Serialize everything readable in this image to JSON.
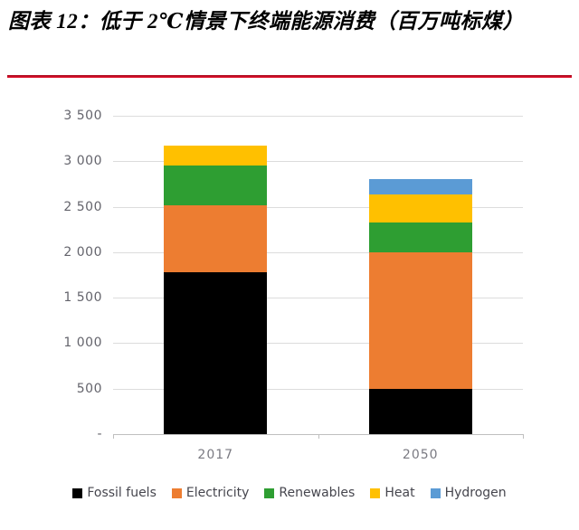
{
  "page": {
    "title": "图表 12：低于 2℃情景下终端能源消费（百万吨标煤）",
    "accent_rule_color": "#C8102E"
  },
  "chart_data": {
    "type": "bar",
    "stacked": true,
    "title": "低于2℃情景下终端能源消费（百万吨标煤）",
    "categories": [
      "2017",
      "2050"
    ],
    "series": [
      {
        "name": "Fossil fuels",
        "color": "#000000",
        "values": [
          1780,
          500
        ]
      },
      {
        "name": "Electricity",
        "color": "#ED7D31",
        "values": [
          740,
          1500
        ]
      },
      {
        "name": "Renewables",
        "color": "#2E9E32",
        "values": [
          430,
          330
        ]
      },
      {
        "name": "Heat",
        "color": "#FFC000",
        "values": [
          220,
          310
        ]
      },
      {
        "name": "Hydrogen",
        "color": "#5B9BD5",
        "values": [
          0,
          160
        ]
      }
    ],
    "totals": [
      3170,
      2800
    ],
    "ylim": [
      0,
      3500
    ],
    "ytick_step": 500,
    "ytick_labels": [
      "-",
      "500",
      "1 000",
      "1 500",
      "2 000",
      "2 500",
      "3 000",
      "3 500"
    ],
    "grid": true,
    "legend_position": "bottom",
    "colors": {
      "gridline": "#DCDCDC",
      "axis": "#BFBFBF",
      "y_label_text": "#64646C",
      "x_label_text": "#7A7A82",
      "legend_text": "#46464E"
    }
  }
}
